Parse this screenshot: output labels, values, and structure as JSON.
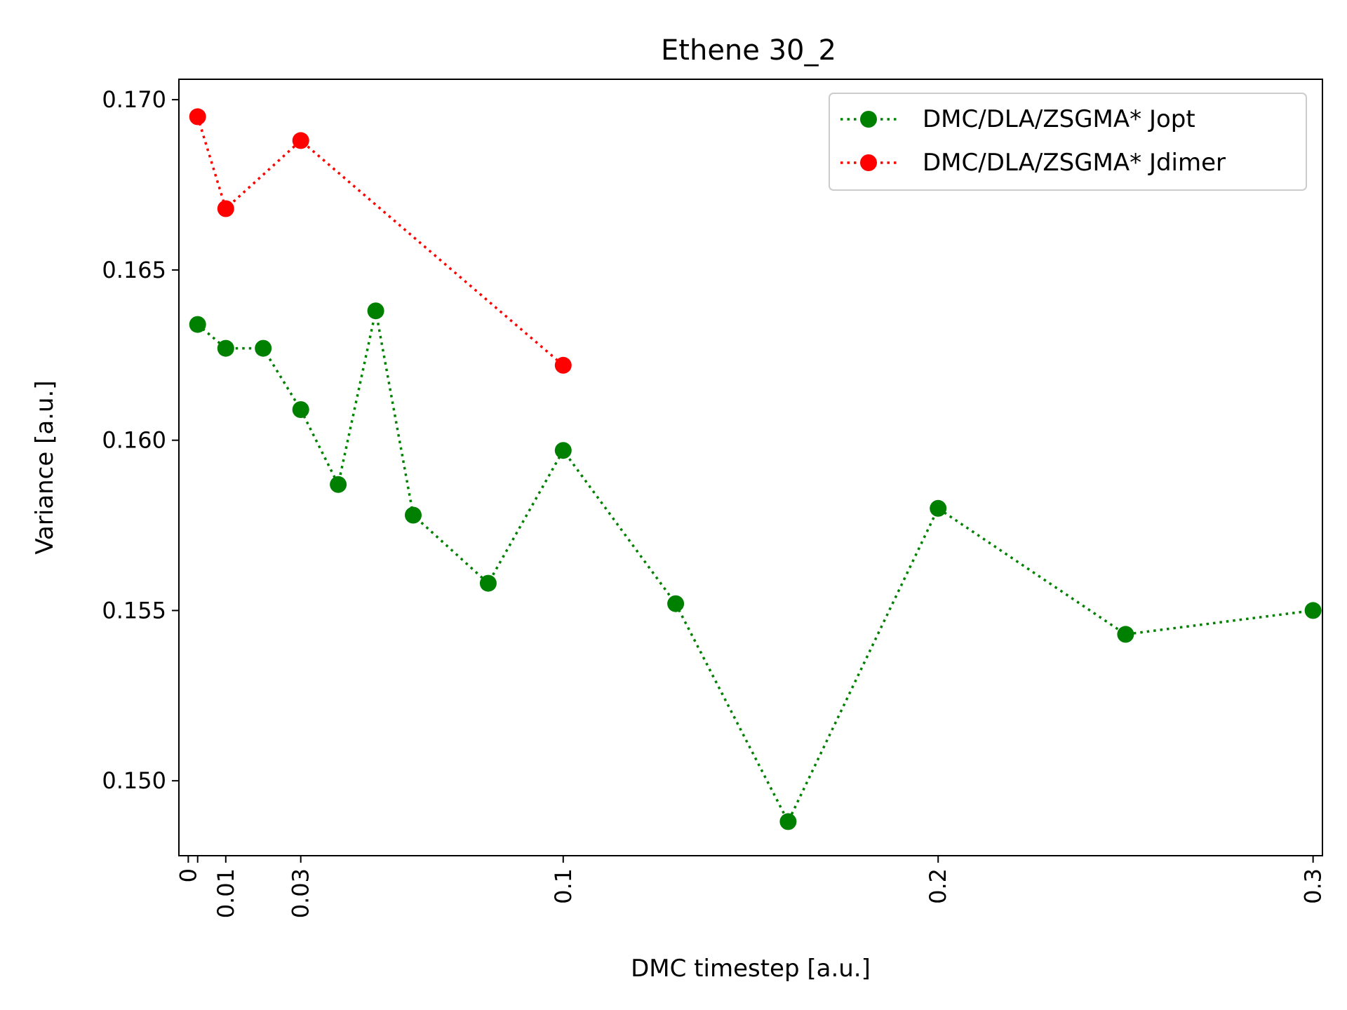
{
  "chart_data": {
    "type": "line",
    "title": "Ethene 30_2",
    "xlabel": "DMC timestep [a.u.]",
    "ylabel": "Variance [a.u.]",
    "xlim": [
      -0.0025,
      0.3025
    ],
    "ylim": [
      0.1478,
      0.1706
    ],
    "xticks": [
      0,
      0.0025,
      0.01,
      0.03,
      0.1,
      0.2,
      0.3
    ],
    "xtick_labels": [
      "0",
      "",
      "0.01",
      "0.03",
      "0.1",
      "0.2",
      "0.3"
    ],
    "yticks": [
      0.15,
      0.155,
      0.16,
      0.165,
      0.17
    ],
    "ytick_labels": [
      "0.150",
      "0.155",
      "0.160",
      "0.165",
      "0.170"
    ],
    "grid": false,
    "legend_position": "top-right",
    "series": [
      {
        "name": "DMC/DLA/ZSGMA* Jopt",
        "color": "#008000",
        "line_style": "dotted",
        "marker": "circle",
        "x": [
          0.0025,
          0.01,
          0.02,
          0.03,
          0.04,
          0.05,
          0.06,
          0.08,
          0.1,
          0.13,
          0.16,
          0.2,
          0.25,
          0.3
        ],
        "y": [
          0.1634,
          0.1627,
          0.1627,
          0.1609,
          0.1587,
          0.1638,
          0.1578,
          0.1558,
          0.1597,
          0.1552,
          0.1488,
          0.158,
          0.1543,
          0.155
        ]
      },
      {
        "name": "DMC/DLA/ZSGMA* Jdimer",
        "color": "#ff0000",
        "line_style": "dotted",
        "marker": "circle",
        "x": [
          0.0025,
          0.01,
          0.03,
          0.1
        ],
        "y": [
          0.1695,
          0.1668,
          0.1688,
          0.1622
        ]
      }
    ]
  }
}
